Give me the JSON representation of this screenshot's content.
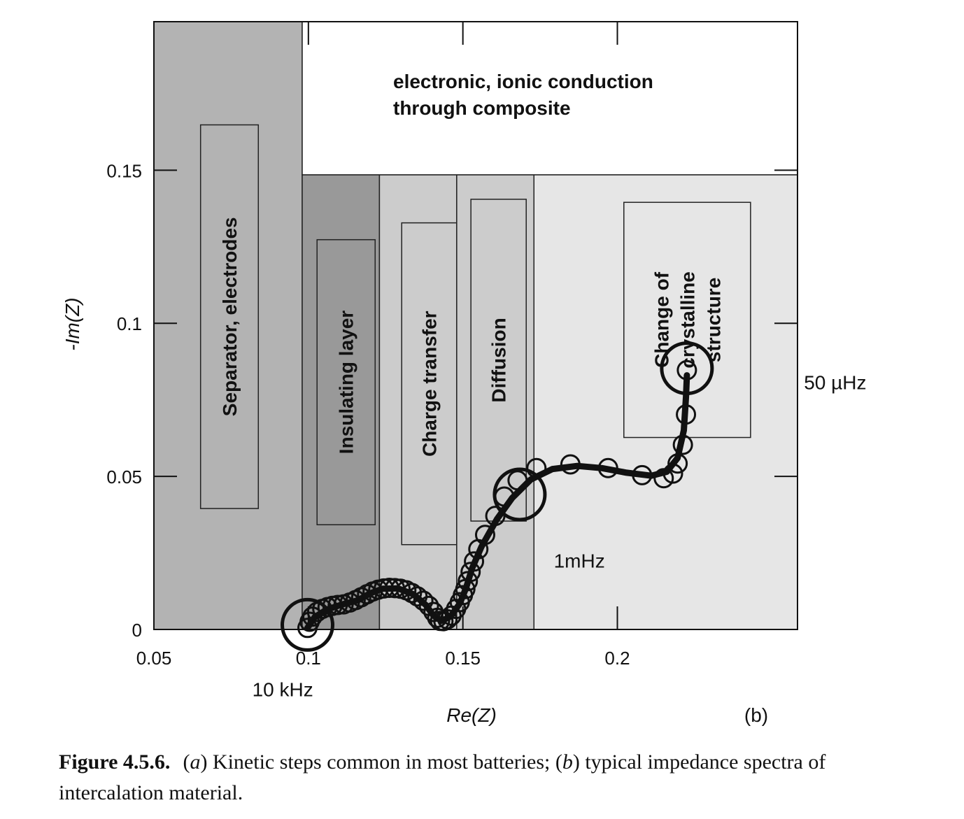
{
  "chart_data": {
    "type": "scatter",
    "xlabel": "Re(Z)",
    "ylabel": "-Im(Z)",
    "xlim": [
      0.05,
      0.2583
    ],
    "ylim": [
      0,
      0.1985
    ],
    "x_ticks": [
      {
        "value": 0.05,
        "label": "0.05"
      },
      {
        "value": 0.1,
        "label": "0.1"
      },
      {
        "value": 0.15,
        "label": "0.15"
      },
      {
        "value": 0.2,
        "label": "0.2"
      }
    ],
    "y_ticks": [
      {
        "value": 0,
        "label": "0"
      },
      {
        "value": 0.05,
        "label": "0.05"
      },
      {
        "value": 0.1,
        "label": "0.1"
      },
      {
        "value": 0.15,
        "label": "0.15"
      }
    ],
    "panel_label": "(b)",
    "regions": [
      {
        "name": "separator",
        "label": "Separator, electrodes",
        "x0": 0.05,
        "x1": 0.098,
        "y0": 0,
        "y1": 0.1985,
        "color": "#b3b3b3",
        "inner": {
          "x0": 0.0651,
          "x1": 0.0838,
          "y0": 0.0395,
          "y1": 0.1648
        },
        "text_lines": [
          "Separator, electrodes"
        ]
      },
      {
        "name": "insulating-layer",
        "label": "Insulating layer",
        "x0": 0.098,
        "x1": 0.123,
        "y0": 0,
        "y1": 0.1485,
        "color": "#999999",
        "inner": {
          "x0": 0.1028,
          "x1": 0.1216,
          "y0": 0.0342,
          "y1": 0.1273
        },
        "text_lines": [
          "Insulating layer"
        ]
      },
      {
        "name": "charge-transfer",
        "label": "Charge transfer",
        "x0": 0.123,
        "x1": 0.148,
        "y0": 0,
        "y1": 0.1485,
        "color": "#cccccc",
        "inner": {
          "x0": 0.1302,
          "x1": 0.1481,
          "y0": 0.0277,
          "y1": 0.1328
        },
        "text_lines": [
          "Charge transfer"
        ]
      },
      {
        "name": "diffusion",
        "label": "Diffusion",
        "x0": 0.148,
        "x1": 0.173,
        "y0": 0,
        "y1": 0.1485,
        "color": "#cccccc",
        "inner": {
          "x0": 0.1526,
          "x1": 0.1705,
          "y0": 0.0354,
          "y1": 0.1405
        },
        "text_lines": [
          "Diffusion"
        ]
      },
      {
        "name": "crystalline-structure",
        "label": "Change of crystalline structure",
        "x0": 0.173,
        "x1": 0.2583,
        "y0": 0,
        "y1": 0.1485,
        "color": "#e6e6e6",
        "inner": {
          "x0": 0.2021,
          "x1": 0.2431,
          "y0": 0.0627,
          "y1": 0.1395
        },
        "text_lines": [
          "Change of",
          "crystalline",
          "structure"
        ]
      },
      {
        "name": "conduction",
        "label": "electronic, ionic conduction through composite",
        "x0": 0.098,
        "x1": 0.2583,
        "y0": 0.1485,
        "y1": 0.1985,
        "color": "#ffffff",
        "text_lines": [
          "electronic, ionic conduction",
          "through composite"
        ]
      }
    ],
    "series": [
      {
        "points": [
          [
            0.0997,
            0.0005
          ],
          [
            0.1004,
            0.0025
          ],
          [
            0.1013,
            0.0042
          ],
          [
            0.1028,
            0.0057
          ],
          [
            0.1045,
            0.0067
          ],
          [
            0.1062,
            0.0073
          ],
          [
            0.1078,
            0.0077
          ],
          [
            0.1095,
            0.008
          ],
          [
            0.1114,
            0.0082
          ],
          [
            0.1134,
            0.0088
          ],
          [
            0.1153,
            0.0096
          ],
          [
            0.1171,
            0.0105
          ],
          [
            0.119,
            0.0115
          ],
          [
            0.1208,
            0.0124
          ],
          [
            0.1226,
            0.013
          ],
          [
            0.1244,
            0.0134
          ],
          [
            0.1262,
            0.0136
          ],
          [
            0.128,
            0.0135
          ],
          [
            0.1298,
            0.0133
          ],
          [
            0.1317,
            0.0128
          ],
          [
            0.1335,
            0.0119
          ],
          [
            0.1353,
            0.0108
          ],
          [
            0.1372,
            0.0094
          ],
          [
            0.139,
            0.0077
          ],
          [
            0.1405,
            0.0057
          ],
          [
            0.1417,
            0.0038
          ],
          [
            0.1426,
            0.0028
          ],
          [
            0.1437,
            0.0027
          ],
          [
            0.145,
            0.0033
          ],
          [
            0.1463,
            0.0045
          ],
          [
            0.1478,
            0.0067
          ],
          [
            0.149,
            0.0089
          ],
          [
            0.15,
            0.0112
          ],
          [
            0.1508,
            0.0132
          ],
          [
            0.1516,
            0.0158
          ],
          [
            0.1525,
            0.0188
          ],
          [
            0.1536,
            0.0222
          ],
          [
            0.155,
            0.0262
          ],
          [
            0.1572,
            0.0309
          ],
          [
            0.1605,
            0.0371
          ],
          [
            0.1634,
            0.0434
          ],
          [
            0.1677,
            0.0487
          ],
          [
            0.1738,
            0.0527
          ],
          [
            0.1848,
            0.0539
          ],
          [
            0.197,
            0.0527
          ],
          [
            0.208,
            0.0504
          ],
          [
            0.215,
            0.0494
          ],
          [
            0.218,
            0.0509
          ],
          [
            0.2195,
            0.0542
          ],
          [
            0.2212,
            0.0603
          ],
          [
            0.2222,
            0.0702
          ],
          [
            0.2225,
            0.0847
          ]
        ],
        "large_markers": [
          [
            0.0997,
            0.0015
          ],
          [
            0.1684,
            0.0441
          ],
          [
            0.2225,
            0.0853
          ]
        ],
        "line": [
          [
            0.0997,
            0.0005
          ],
          [
            0.102,
            0.004
          ],
          [
            0.106,
            0.0065
          ],
          [
            0.111,
            0.0082
          ],
          [
            0.116,
            0.0095
          ],
          [
            0.12,
            0.0118
          ],
          [
            0.124,
            0.0133
          ],
          [
            0.129,
            0.0134
          ],
          [
            0.134,
            0.0115
          ],
          [
            0.138,
            0.008
          ],
          [
            0.1405,
            0.0045
          ],
          [
            0.143,
            0.0028
          ],
          [
            0.146,
            0.0042
          ],
          [
            0.149,
            0.0085
          ],
          [
            0.151,
            0.0135
          ],
          [
            0.153,
            0.02
          ],
          [
            0.156,
            0.027
          ],
          [
            0.161,
            0.036
          ],
          [
            0.166,
            0.043
          ],
          [
            0.172,
            0.049
          ],
          [
            0.179,
            0.0524
          ],
          [
            0.187,
            0.0534
          ],
          [
            0.195,
            0.0527
          ],
          [
            0.203,
            0.0512
          ],
          [
            0.211,
            0.0502
          ],
          [
            0.216,
            0.0515
          ],
          [
            0.2195,
            0.056
          ],
          [
            0.2215,
            0.065
          ],
          [
            0.2222,
            0.076
          ],
          [
            0.2225,
            0.083
          ]
        ]
      }
    ],
    "annotations": [
      {
        "name": "label-10khz",
        "text": "10 kHz",
        "x": 0.0917,
        "y": -0.0195
      },
      {
        "name": "label-1mhz",
        "text": "1mHz",
        "x": 0.1877,
        "y": 0.0225
      },
      {
        "name": "label-50uhz",
        "text": "50 µHz",
        "x": 0.2705,
        "y": 0.0808
      }
    ],
    "grid": false
  },
  "caption": {
    "figure_number": "Figure 4.5.6.",
    "text_1": "(",
    "a": "a",
    "text_2": ") Kinetic steps common in most batteries; (",
    "b": "b",
    "text_3": ") typical impedance spectra of intercalation material."
  }
}
